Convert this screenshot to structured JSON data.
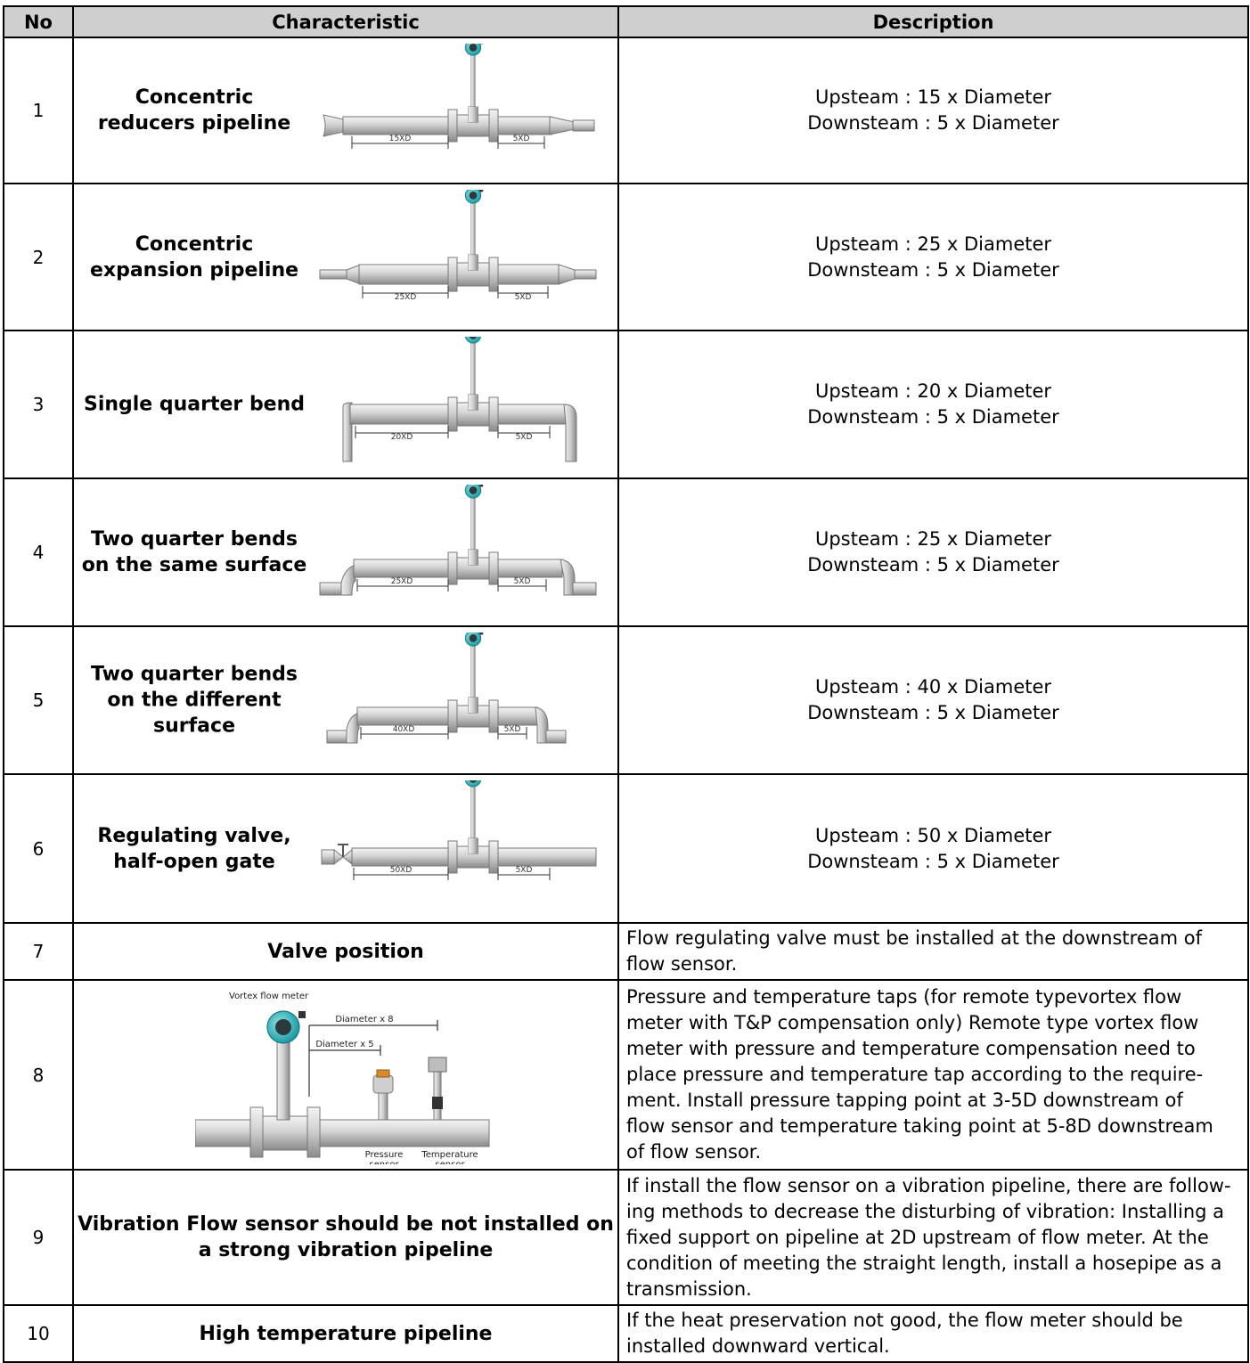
{
  "headers": {
    "no": "No",
    "characteristic": "Characteristic",
    "description": "Description"
  },
  "rows": [
    {
      "no": "1",
      "label": [
        "Concentric",
        "reducers pipeline"
      ],
      "up_dim": "15XD",
      "down_dim": "5XD",
      "desc": [
        "Upsteam : 15 x Diameter",
        "Downsteam : 5 x Diameter"
      ]
    },
    {
      "no": "2",
      "label": [
        "Concentric",
        "expansion pipeline"
      ],
      "up_dim": "25XD",
      "down_dim": "5XD",
      "desc": [
        "Upsteam : 25 x Diameter",
        "Downsteam : 5 x Diameter"
      ]
    },
    {
      "no": "3",
      "label": [
        "Single quarter bend"
      ],
      "up_dim": "20XD",
      "down_dim": "5XD",
      "desc": [
        "Upsteam : 20 x Diameter",
        "Downsteam : 5 x Diameter"
      ]
    },
    {
      "no": "4",
      "label": [
        "Two quarter bends",
        "on the same surface"
      ],
      "up_dim": "25XD",
      "down_dim": "5XD",
      "desc": [
        "Upsteam : 25 x Diameter",
        "Downsteam : 5 x Diameter"
      ]
    },
    {
      "no": "5",
      "label": [
        "Two quarter bends",
        "on the different",
        "surface"
      ],
      "up_dim": "40XD",
      "down_dim": "5XD",
      "desc": [
        "Upsteam : 40 x Diameter",
        "Downsteam : 5 x Diameter"
      ]
    },
    {
      "no": "6",
      "label": [
        "Regulating valve,",
        "half-open gate"
      ],
      "up_dim": "50XD",
      "down_dim": "5XD",
      "desc": [
        "Upsteam : 50 x Diameter",
        "Downsteam : 5 x Diameter"
      ]
    },
    {
      "no": "7",
      "label": [
        "Valve position"
      ],
      "desc": [
        "Flow regulating valve must be installed at the downstream of",
        "flow sensor."
      ]
    },
    {
      "no": "8",
      "diagram_labels": {
        "title": "Vortex flow meter",
        "d8": "Diameter x 8",
        "d5": "Diameter x 5",
        "pressure": [
          "Pressure",
          "sensor"
        ],
        "temperature": [
          "Temperature",
          "sensor"
        ]
      },
      "desc": [
        "Pressure and temperature taps (for remote typevortex flow",
        "meter with T&P compensation only) Remote type vortex flow",
        "meter with pressure and temperature compensation need to",
        "place pressure and temperature tap according to the require-",
        "ment. Install pressure tapping  point at 3-5D downstream of",
        "flow sensor and temperature taking point at 5-8D downstream",
        "of flow sensor."
      ]
    },
    {
      "no": "9",
      "label": [
        "Vibration Flow sensor should be not installed on",
        "a strong vibration pipeline"
      ],
      "desc": [
        "If install the flow sensor on a vibration pipeline, there are follow-",
        "ing methods to decrease the disturbing of vibration: Installing a",
        "fixed support on pipeline at 2D upstream of flow meter. At the",
        "condition of meeting the straight length, install a hosepipe as a",
        "transmission."
      ]
    },
    {
      "no": "10",
      "label": [
        "High temperature pipeline"
      ],
      "desc": [
        "If the heat preservation not good, the  flow meter should be",
        "installed downward vertical."
      ]
    }
  ]
}
